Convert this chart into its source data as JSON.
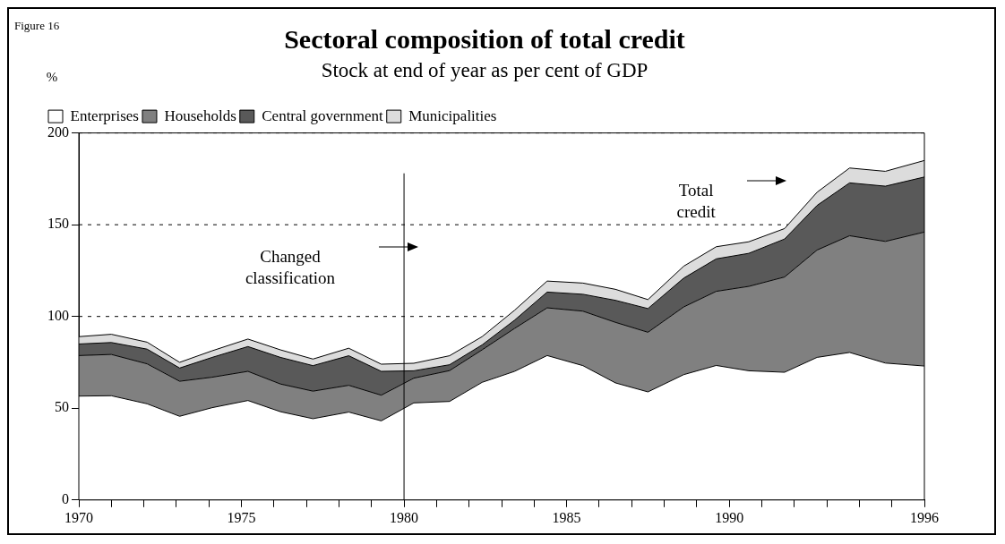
{
  "chart_data": {
    "type": "area",
    "title": "Sectoral composition of total credit",
    "subtitle": "Stock at end of year as per cent of GDP",
    "ylabel": "%",
    "annotations": [
      "Figure 16",
      "Changed classification",
      "Total credit"
    ],
    "x": [
      1970,
      1971,
      1972.1,
      1973.1,
      1974.1,
      1975.2,
      1976.2,
      1977.2,
      1978.3,
      1979.3,
      1980.3,
      1981.4,
      1982.4,
      1983.4,
      1984.4,
      1985.5,
      1986.5,
      1987.5,
      1988.6,
      1989.6,
      1990.6,
      1991.7,
      1992.7,
      1993.7,
      1994.8,
      1996
    ],
    "stacked": true,
    "series": [
      {
        "name": "Enterprises",
        "color": "#ffffff",
        "values": [
          56.6,
          56.8,
          52.4,
          45.6,
          50.3,
          54.2,
          48.1,
          44.3,
          47.9,
          43.1,
          52.9,
          53.7,
          64.1,
          70.1,
          78.7,
          73.2,
          63.8,
          58.9,
          68.3,
          73.3,
          70.4,
          69.6,
          77.7,
          80.4,
          74.6,
          73
        ]
      },
      {
        "name": "Households",
        "color": "#808080",
        "values": [
          22.1,
          22.5,
          21.8,
          19.1,
          16.6,
          15.9,
          15.1,
          15,
          14.6,
          14,
          13.5,
          16.8,
          17.7,
          23.4,
          26,
          29.7,
          33,
          32.5,
          36.9,
          40.4,
          46,
          51.9,
          58.5,
          63.6,
          66.3,
          73
        ]
      },
      {
        "name": "Central government",
        "color": "#595959",
        "values": [
          6.3,
          6.5,
          8,
          7.2,
          10.8,
          13.5,
          14.5,
          13.9,
          16.1,
          13,
          4,
          3.2,
          2.7,
          4.5,
          8.6,
          9.2,
          12,
          12.9,
          15.7,
          17.7,
          18,
          20.7,
          24.3,
          28.8,
          30.1,
          30
        ]
      },
      {
        "name": "Municipalities",
        "color": "#dcdcdc",
        "values": [
          4,
          4.5,
          3.8,
          3.1,
          3.6,
          4.1,
          4.1,
          3.6,
          4.1,
          3.9,
          4.1,
          4.9,
          4.5,
          5.4,
          6,
          6.1,
          6,
          4.9,
          6.5,
          6.6,
          6.3,
          5.7,
          7.2,
          8.1,
          8.1,
          9
        ]
      }
    ],
    "xlim": [
      1970,
      1996
    ],
    "xticks": [
      1970,
      {
        "value": 1971,
        "label": null
      },
      {
        "value": 1972,
        "label": null
      },
      {
        "value": 1973,
        "label": null
      },
      {
        "value": 1974,
        "label": null
      },
      1975,
      {
        "value": 1976,
        "label": null
      },
      {
        "value": 1977,
        "label": null
      },
      {
        "value": 1978,
        "label": null
      },
      {
        "value": 1979,
        "label": null
      },
      1980,
      {
        "value": 1981,
        "label": null
      },
      {
        "value": 1982,
        "label": null
      },
      {
        "value": 1983,
        "label": null
      },
      {
        "value": 1984,
        "label": null
      },
      1985,
      {
        "value": 1986,
        "label": null
      },
      {
        "value": 1987,
        "label": null
      },
      {
        "value": 1988,
        "label": null
      },
      {
        "value": 1989,
        "label": null
      },
      1990,
      {
        "value": 1991,
        "label": null
      },
      {
        "value": 1992,
        "label": null
      },
      {
        "value": 1993,
        "label": null
      },
      {
        "value": 1994,
        "label": null
      },
      {
        "value": 1995,
        "label": null
      },
      1996
    ],
    "ylim": [
      0,
      200
    ],
    "yticks": [
      0,
      50,
      100,
      150,
      200
    ],
    "ref_lines": [
      {
        "axis": "x",
        "value": 1980,
        "color": "#000000"
      }
    ],
    "grid": "y",
    "legend": "top left",
    "marker": "none"
  }
}
